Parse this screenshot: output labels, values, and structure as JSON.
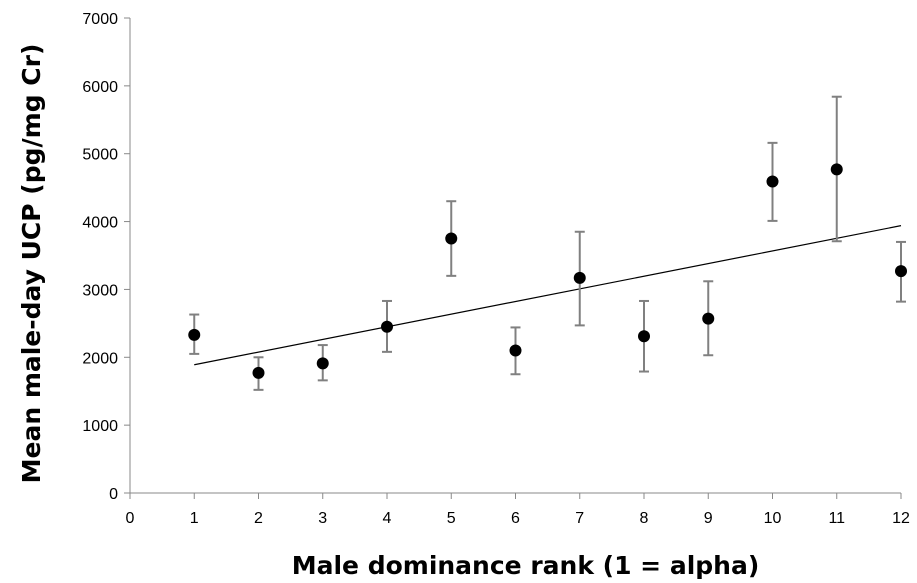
{
  "chart_data": {
    "type": "scatter",
    "title": "",
    "xlabel": "Male dominance rank (1 = alpha)",
    "ylabel": "Mean male-day UCP (pg/mg Cr)",
    "xlim": [
      0,
      12
    ],
    "ylim": [
      0,
      7000
    ],
    "xticks": [
      0,
      1,
      2,
      3,
      4,
      5,
      6,
      7,
      8,
      9,
      10,
      11,
      12
    ],
    "yticks": [
      0,
      1000,
      2000,
      3000,
      4000,
      5000,
      6000,
      7000
    ],
    "grid": false,
    "legend": "none",
    "series": [
      {
        "marker_color": "#000000",
        "errorbar_color": "#808080",
        "points": [
          {
            "x": 1,
            "y": 2330,
            "low": 2050,
            "high": 2630
          },
          {
            "x": 2,
            "y": 1770,
            "low": 1520,
            "high": 2000
          },
          {
            "x": 3,
            "y": 1910,
            "low": 1660,
            "high": 2180
          },
          {
            "x": 4,
            "y": 2450,
            "low": 2080,
            "high": 2830
          },
          {
            "x": 5,
            "y": 3750,
            "low": 3200,
            "high": 4300
          },
          {
            "x": 6,
            "y": 2100,
            "low": 1750,
            "high": 2440
          },
          {
            "x": 7,
            "y": 3170,
            "low": 2470,
            "high": 3850
          },
          {
            "x": 8,
            "y": 2310,
            "low": 1790,
            "high": 2830
          },
          {
            "x": 9,
            "y": 2570,
            "low": 2030,
            "high": 3120
          },
          {
            "x": 10,
            "y": 4590,
            "low": 4010,
            "high": 5160
          },
          {
            "x": 11,
            "y": 4770,
            "low": 3710,
            "high": 5840
          },
          {
            "x": 12,
            "y": 3270,
            "low": 2820,
            "high": 3700
          }
        ]
      }
    ],
    "trendline": {
      "type": "linear",
      "x_start": 1,
      "y_start": 1890,
      "x_end": 12,
      "y_end": 3940,
      "color": "#000000"
    }
  }
}
